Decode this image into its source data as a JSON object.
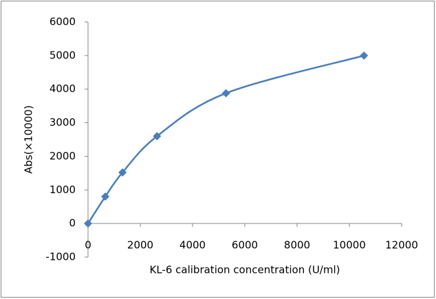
{
  "chart_data": {
    "type": "scatter",
    "smooth": true,
    "x_label": "KL-6 calibration concentration (U/ml)",
    "y_label": "Abs(×10000)",
    "x": [
      0,
      660,
      1320,
      2640,
      5280,
      10560
    ],
    "values": [
      0,
      800,
      1520,
      2600,
      3880,
      5000
    ],
    "color": "#4a7ebb",
    "xlim": [
      0,
      12000
    ],
    "xticks": [
      0,
      2000,
      4000,
      6000,
      8000,
      10000,
      12000
    ],
    "ylim": [
      -1000,
      6000
    ],
    "yticks": [
      -1000,
      0,
      1000,
      2000,
      3000,
      4000,
      5000,
      6000
    ],
    "grid": false
  }
}
